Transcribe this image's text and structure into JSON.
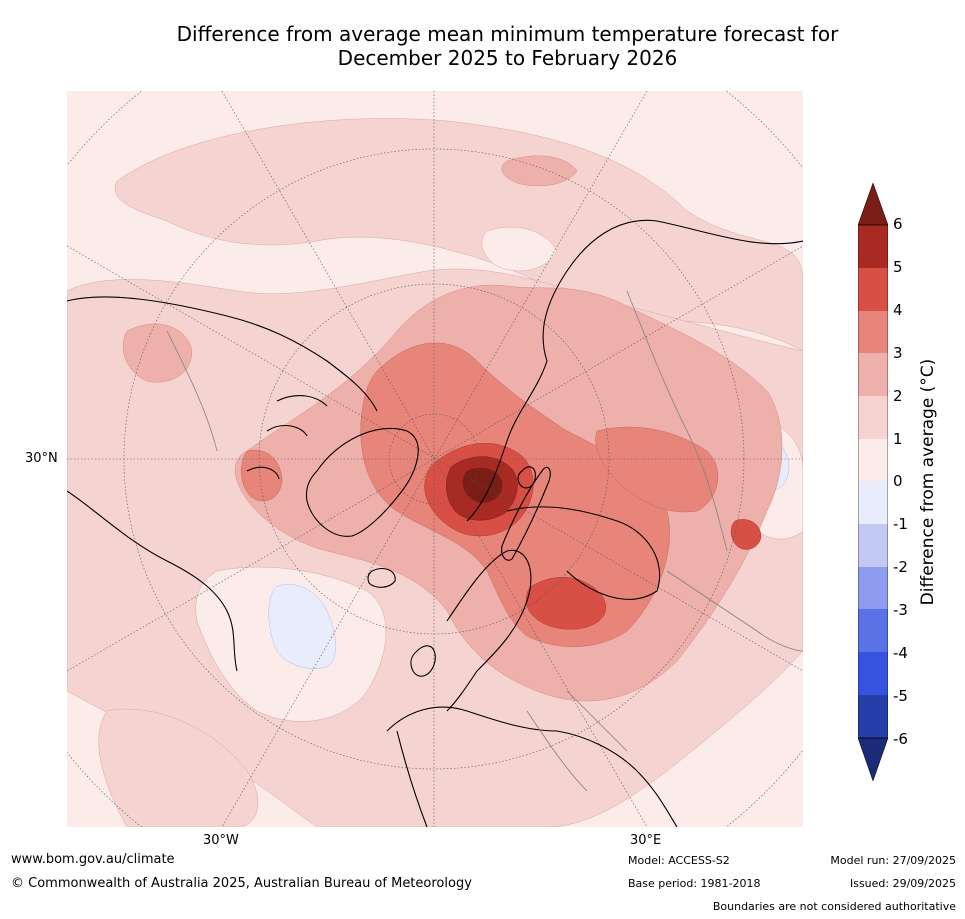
{
  "title_line1": "Difference from average mean minimum temperature forecast for",
  "title_line2": "December 2025 to February 2026",
  "map": {
    "lat_label": "30°N",
    "lon_labels": [
      "30°W",
      "30°E"
    ]
  },
  "colorbar": {
    "label": "Difference from average (°C)",
    "ticks": [
      "6",
      "5",
      "4",
      "3",
      "2",
      "1",
      "0",
      "-1",
      "-2",
      "-3",
      "-4",
      "-5",
      "-6"
    ],
    "colors": {
      "above_6": "#7a1d17",
      "c5_6": "#a82a23",
      "c4_5": "#d84f45",
      "c3_4": "#e8857b",
      "c2_3": "#eeb0aa",
      "c1_2": "#f5d3d0",
      "c0_1": "#fbebe9",
      "cm1_0": "#e8ecfb",
      "cm2_m1": "#c2c9f2",
      "cm3_m2": "#8d9cee",
      "cm4_m3": "#5a72e6",
      "cm5_m4": "#3553e0",
      "cm6_m5": "#263ea8",
      "below_m6": "#1c2a7a"
    }
  },
  "footer": {
    "url": "www.bom.gov.au/climate",
    "copyright": "© Commonwealth of Australia 2025, Australian Bureau of Meteorology",
    "model": "Model: ACCESS-S2",
    "base_period": "Base period: 1981-2018",
    "model_run": "Model run: 27/09/2025",
    "issued": "Issued: 29/09/2025",
    "disclaimer": "Boundaries are not considered authoritative"
  }
}
